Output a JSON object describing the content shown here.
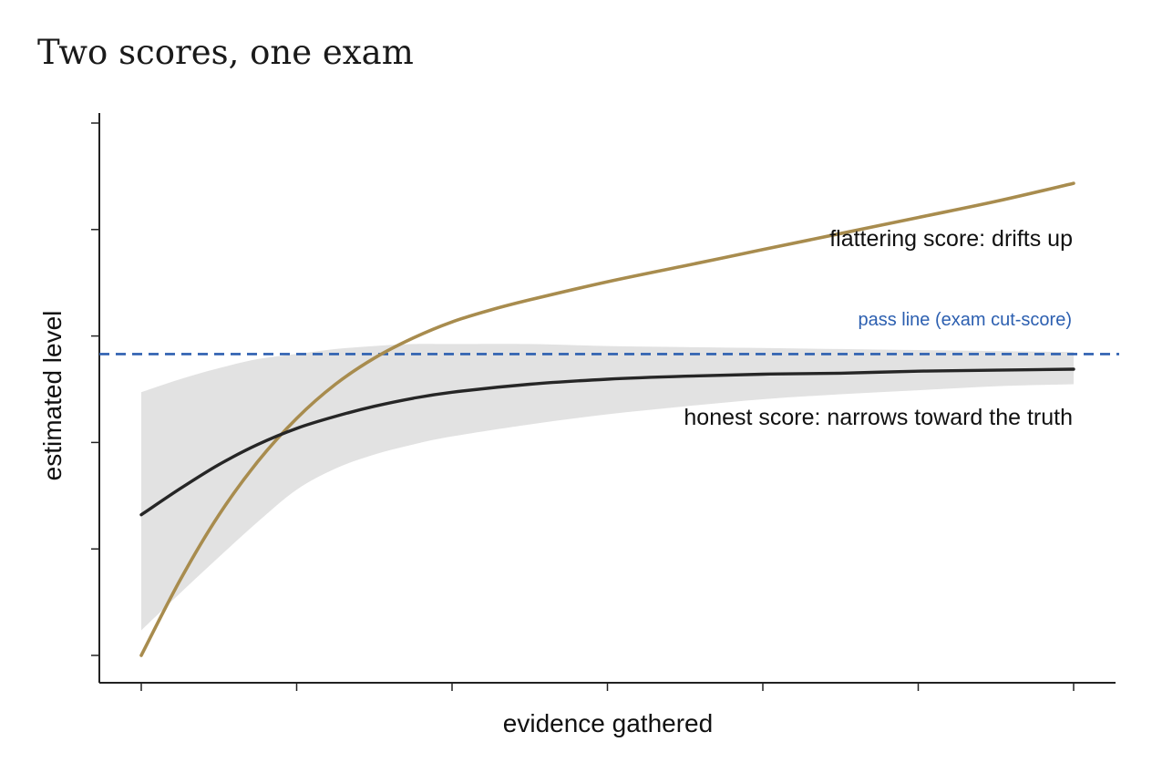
{
  "title": "Two scores, one exam",
  "chart_data": {
    "type": "line",
    "title": "Two scores, one exam",
    "xlabel": "evidence gathered",
    "ylabel": "estimated level",
    "x_ticks": [
      "",
      "",
      "",
      "",
      "",
      "",
      ""
    ],
    "y_ticks": [
      "",
      "",
      "",
      "",
      "",
      ""
    ],
    "xlim": [
      0,
      6
    ],
    "ylim": [
      0,
      5.3
    ],
    "grid": false,
    "series": [
      {
        "name": "flattering score: drifts up",
        "color": "#a88c4e",
        "x": [
          0,
          0.25,
          0.5,
          0.75,
          1,
          1.25,
          1.5,
          1.75,
          2,
          2.25,
          2.5,
          3,
          3.5,
          4,
          4.5,
          5,
          5.5,
          6
        ],
        "y": [
          0,
          0.75,
          1.4,
          1.93,
          2.36,
          2.7,
          2.96,
          3.16,
          3.32,
          3.44,
          3.54,
          3.72,
          3.88,
          4.04,
          4.2,
          4.36,
          4.52,
          4.7
        ]
      },
      {
        "name": "honest score: narrows toward the truth",
        "color": "#262626",
        "x": [
          0,
          0.25,
          0.5,
          0.75,
          1,
          1.25,
          1.5,
          1.75,
          2,
          2.5,
          3,
          3.5,
          4,
          4.5,
          5,
          5.5,
          6
        ],
        "y": [
          1.4,
          1.66,
          1.9,
          2.1,
          2.26,
          2.38,
          2.48,
          2.56,
          2.62,
          2.7,
          2.75,
          2.78,
          2.8,
          2.81,
          2.83,
          2.84,
          2.85
        ],
        "band_upper": [
          2.62,
          2.75,
          2.86,
          2.95,
          3.0,
          3.05,
          3.08,
          3.1,
          3.1,
          3.1,
          3.08,
          3.07,
          3.06,
          3.05,
          3.04,
          3.03,
          3.02
        ],
        "band_lower": [
          0.25,
          0.62,
          0.98,
          1.33,
          1.65,
          1.86,
          2.0,
          2.1,
          2.18,
          2.3,
          2.4,
          2.48,
          2.55,
          2.6,
          2.64,
          2.68,
          2.7
        ]
      }
    ],
    "reference_lines": [
      {
        "label": "pass line (exam cut-score)",
        "y": 3.0,
        "color": "#2c5fb0",
        "style": "dashed"
      }
    ],
    "annotations": [
      {
        "text": "flattering score: drifts up",
        "series": 0
      },
      {
        "text": "honest score: narrows toward the truth",
        "series": 1
      }
    ]
  }
}
